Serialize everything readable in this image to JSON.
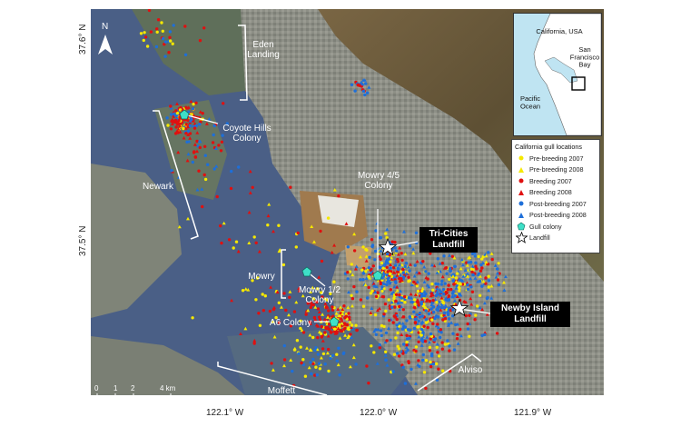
{
  "axes": {
    "lat_labels": [
      "37.6° N",
      "37.5° N"
    ],
    "lon_labels": [
      "122.1° W",
      "122.0° W",
      "121.9° W"
    ]
  },
  "north_label": "N",
  "scale_bar": {
    "ticks": [
      "0",
      "1",
      "2",
      "4 km"
    ]
  },
  "map_labels": {
    "eden_landing": "Eden\nLanding",
    "coyote_hills": "Coyote Hills\nColony",
    "newark": "Newark",
    "mowry_45": "Mowry 4/5\nColony",
    "mowry": "Mowry",
    "mowry_12": "Mowry 1/2\nColony",
    "a6_colony": "A6 Colony",
    "moffett": "Moffett",
    "alviso": "Alviso"
  },
  "callouts": {
    "tri_cities": "Tri-Cities\nLandfill",
    "newby_island": "Newby Island\nLandfill"
  },
  "inset": {
    "title": "California, USA",
    "bay_label": "San\nFrancisco\nBay",
    "ocean_label": "Pacific\nOcean"
  },
  "legend": {
    "title": "California gull locations",
    "items": [
      {
        "label": "Pre-breeding 2007",
        "shape": "circle",
        "color": "#f5e800"
      },
      {
        "label": "Pre-breeding 2008",
        "shape": "triangle",
        "color": "#f5e800"
      },
      {
        "label": "Breeding 2007",
        "shape": "circle",
        "color": "#e01010"
      },
      {
        "label": "Breeding 2008",
        "shape": "triangle",
        "color": "#e01010"
      },
      {
        "label": "Post-breeding 2007",
        "shape": "circle",
        "color": "#1e6fd9"
      },
      {
        "label": "Post-breeding 2008",
        "shape": "triangle",
        "color": "#1e6fd9"
      },
      {
        "label": "Gull colony",
        "shape": "pentagon",
        "color": "#3ee0c8"
      },
      {
        "label": "Landfill",
        "shape": "star",
        "color": "#ffffff"
      }
    ]
  },
  "colors": {
    "water": "#4a5f86",
    "land": "#8a8f7e",
    "hills": "#6b5a3c",
    "colony": "#3ee0c8"
  }
}
